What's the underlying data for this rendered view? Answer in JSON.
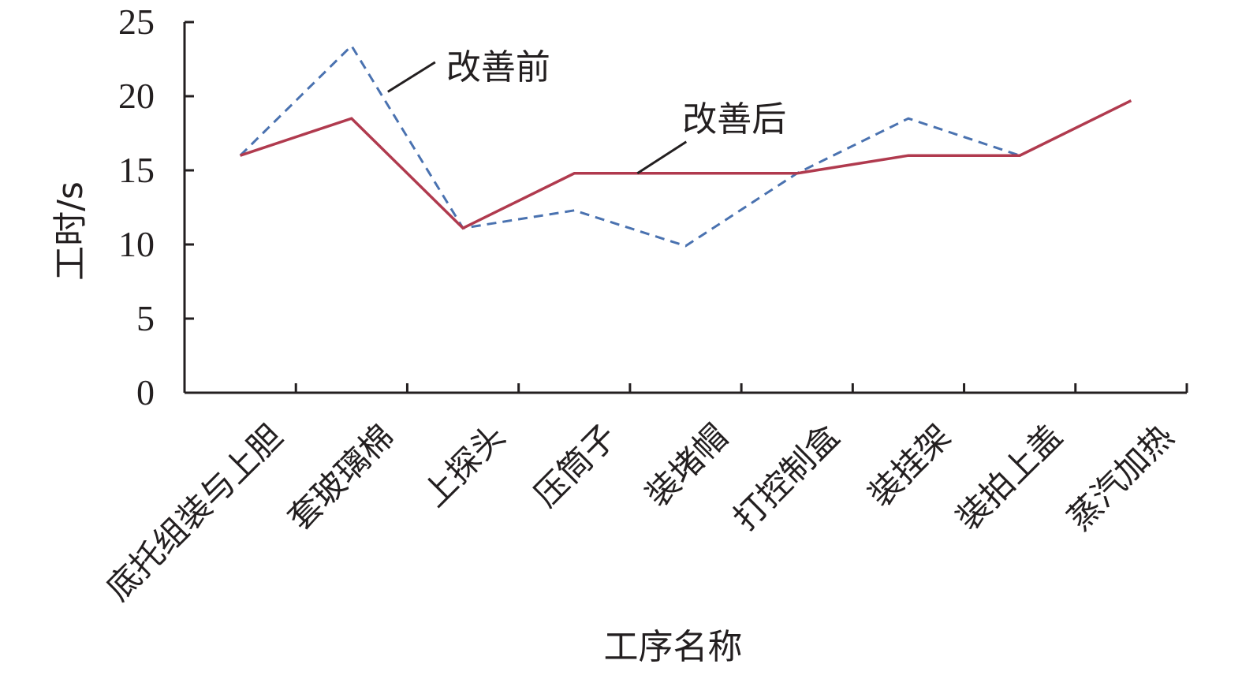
{
  "chart_data": {
    "type": "line",
    "xlabel": "工序名称",
    "ylabel": "工时/s",
    "ylim": [
      0,
      25
    ],
    "yticks": [
      0,
      5,
      10,
      15,
      20,
      25
    ],
    "grid": false,
    "legend": "none",
    "categories": [
      "底托组装与上胆",
      "套玻璃棉",
      "上探头",
      "压筒子",
      "装堵帽",
      "打控制盒",
      "装挂架",
      "装拍上盖",
      "蒸汽加热"
    ],
    "series": [
      {
        "name": "改善前",
        "style": "dashed",
        "color": "#4a72b0",
        "values": [
          16,
          23.4,
          11.1,
          12.3,
          9.9,
          14.8,
          18.5,
          16,
          null
        ]
      },
      {
        "name": "改善后",
        "style": "solid",
        "color": "#b03a4e",
        "values": [
          16,
          18.5,
          11.1,
          14.8,
          14.8,
          14.8,
          16,
          16,
          19.7
        ]
      }
    ],
    "annotations": [
      {
        "text": "改善前",
        "series": "改善前"
      },
      {
        "text": "改善后",
        "series": "改善后"
      }
    ]
  }
}
